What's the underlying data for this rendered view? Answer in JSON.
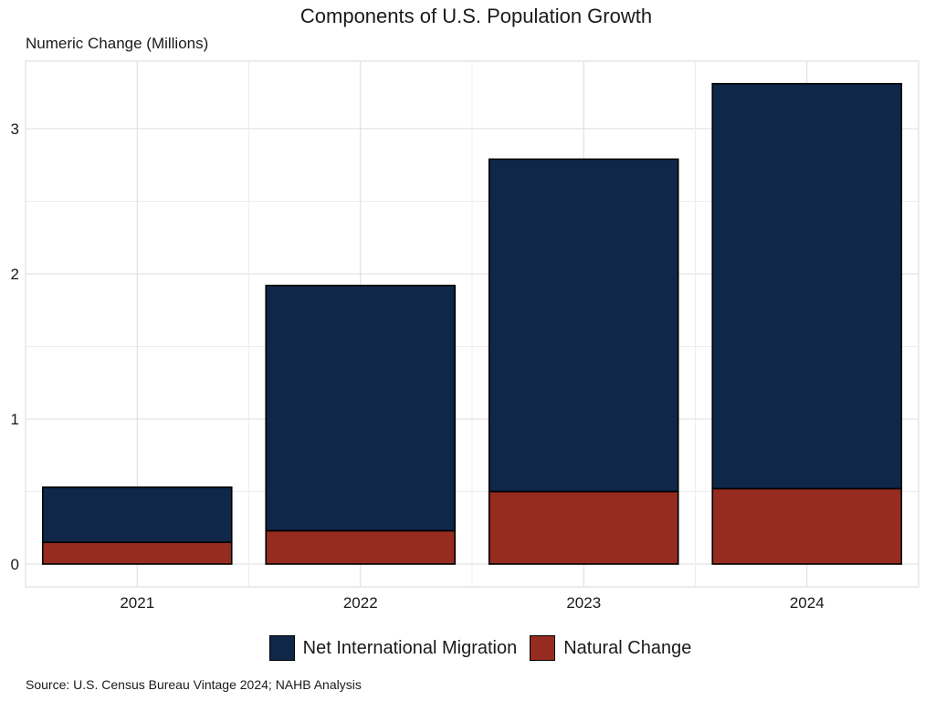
{
  "chart_data": {
    "type": "bar",
    "stacked": true,
    "title": "Components of U.S. Population Growth",
    "subtitle": "Numeric Change (Millions)",
    "xlabel": "",
    "ylabel": "",
    "categories": [
      "2021",
      "2022",
      "2023",
      "2024"
    ],
    "series": [
      {
        "name": "Natural Change",
        "color": "#962b20",
        "values": [
          0.15,
          0.23,
          0.5,
          0.52
        ]
      },
      {
        "name": "Net International Migration",
        "color": "#0f2749",
        "values": [
          0.38,
          1.69,
          2.29,
          2.79
        ]
      }
    ],
    "legend_order": [
      "Net International Migration",
      "Natural Change"
    ],
    "ylim": [
      0,
      3.4
    ],
    "yticks": [
      0,
      1,
      2,
      3
    ],
    "grid": true,
    "legend_position": "bottom",
    "source": "Source: U.S. Census Bureau Vintage 2024; NAHB Analysis"
  }
}
